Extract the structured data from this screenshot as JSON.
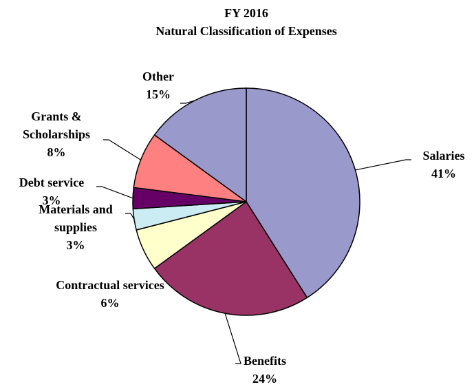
{
  "chart_data": {
    "type": "pie",
    "title": "FY 2016",
    "subtitle": "Natural Classification of Expenses",
    "categories": [
      "Salaries",
      "Benefits",
      "Contractual services",
      "Materials and supplies",
      "Debt service",
      "Grants & Scholarships",
      "Other"
    ],
    "values": [
      41,
      24,
      6,
      3,
      3,
      8,
      15
    ],
    "value_labels": [
      "41%",
      "24%",
      "6%",
      "3%",
      "3%",
      "8%",
      "15%"
    ],
    "colors": [
      "#9999cc",
      "#993366",
      "#ffffcc",
      "#ccecf4",
      "#660066",
      "#ff8080",
      "#9999cc"
    ]
  }
}
